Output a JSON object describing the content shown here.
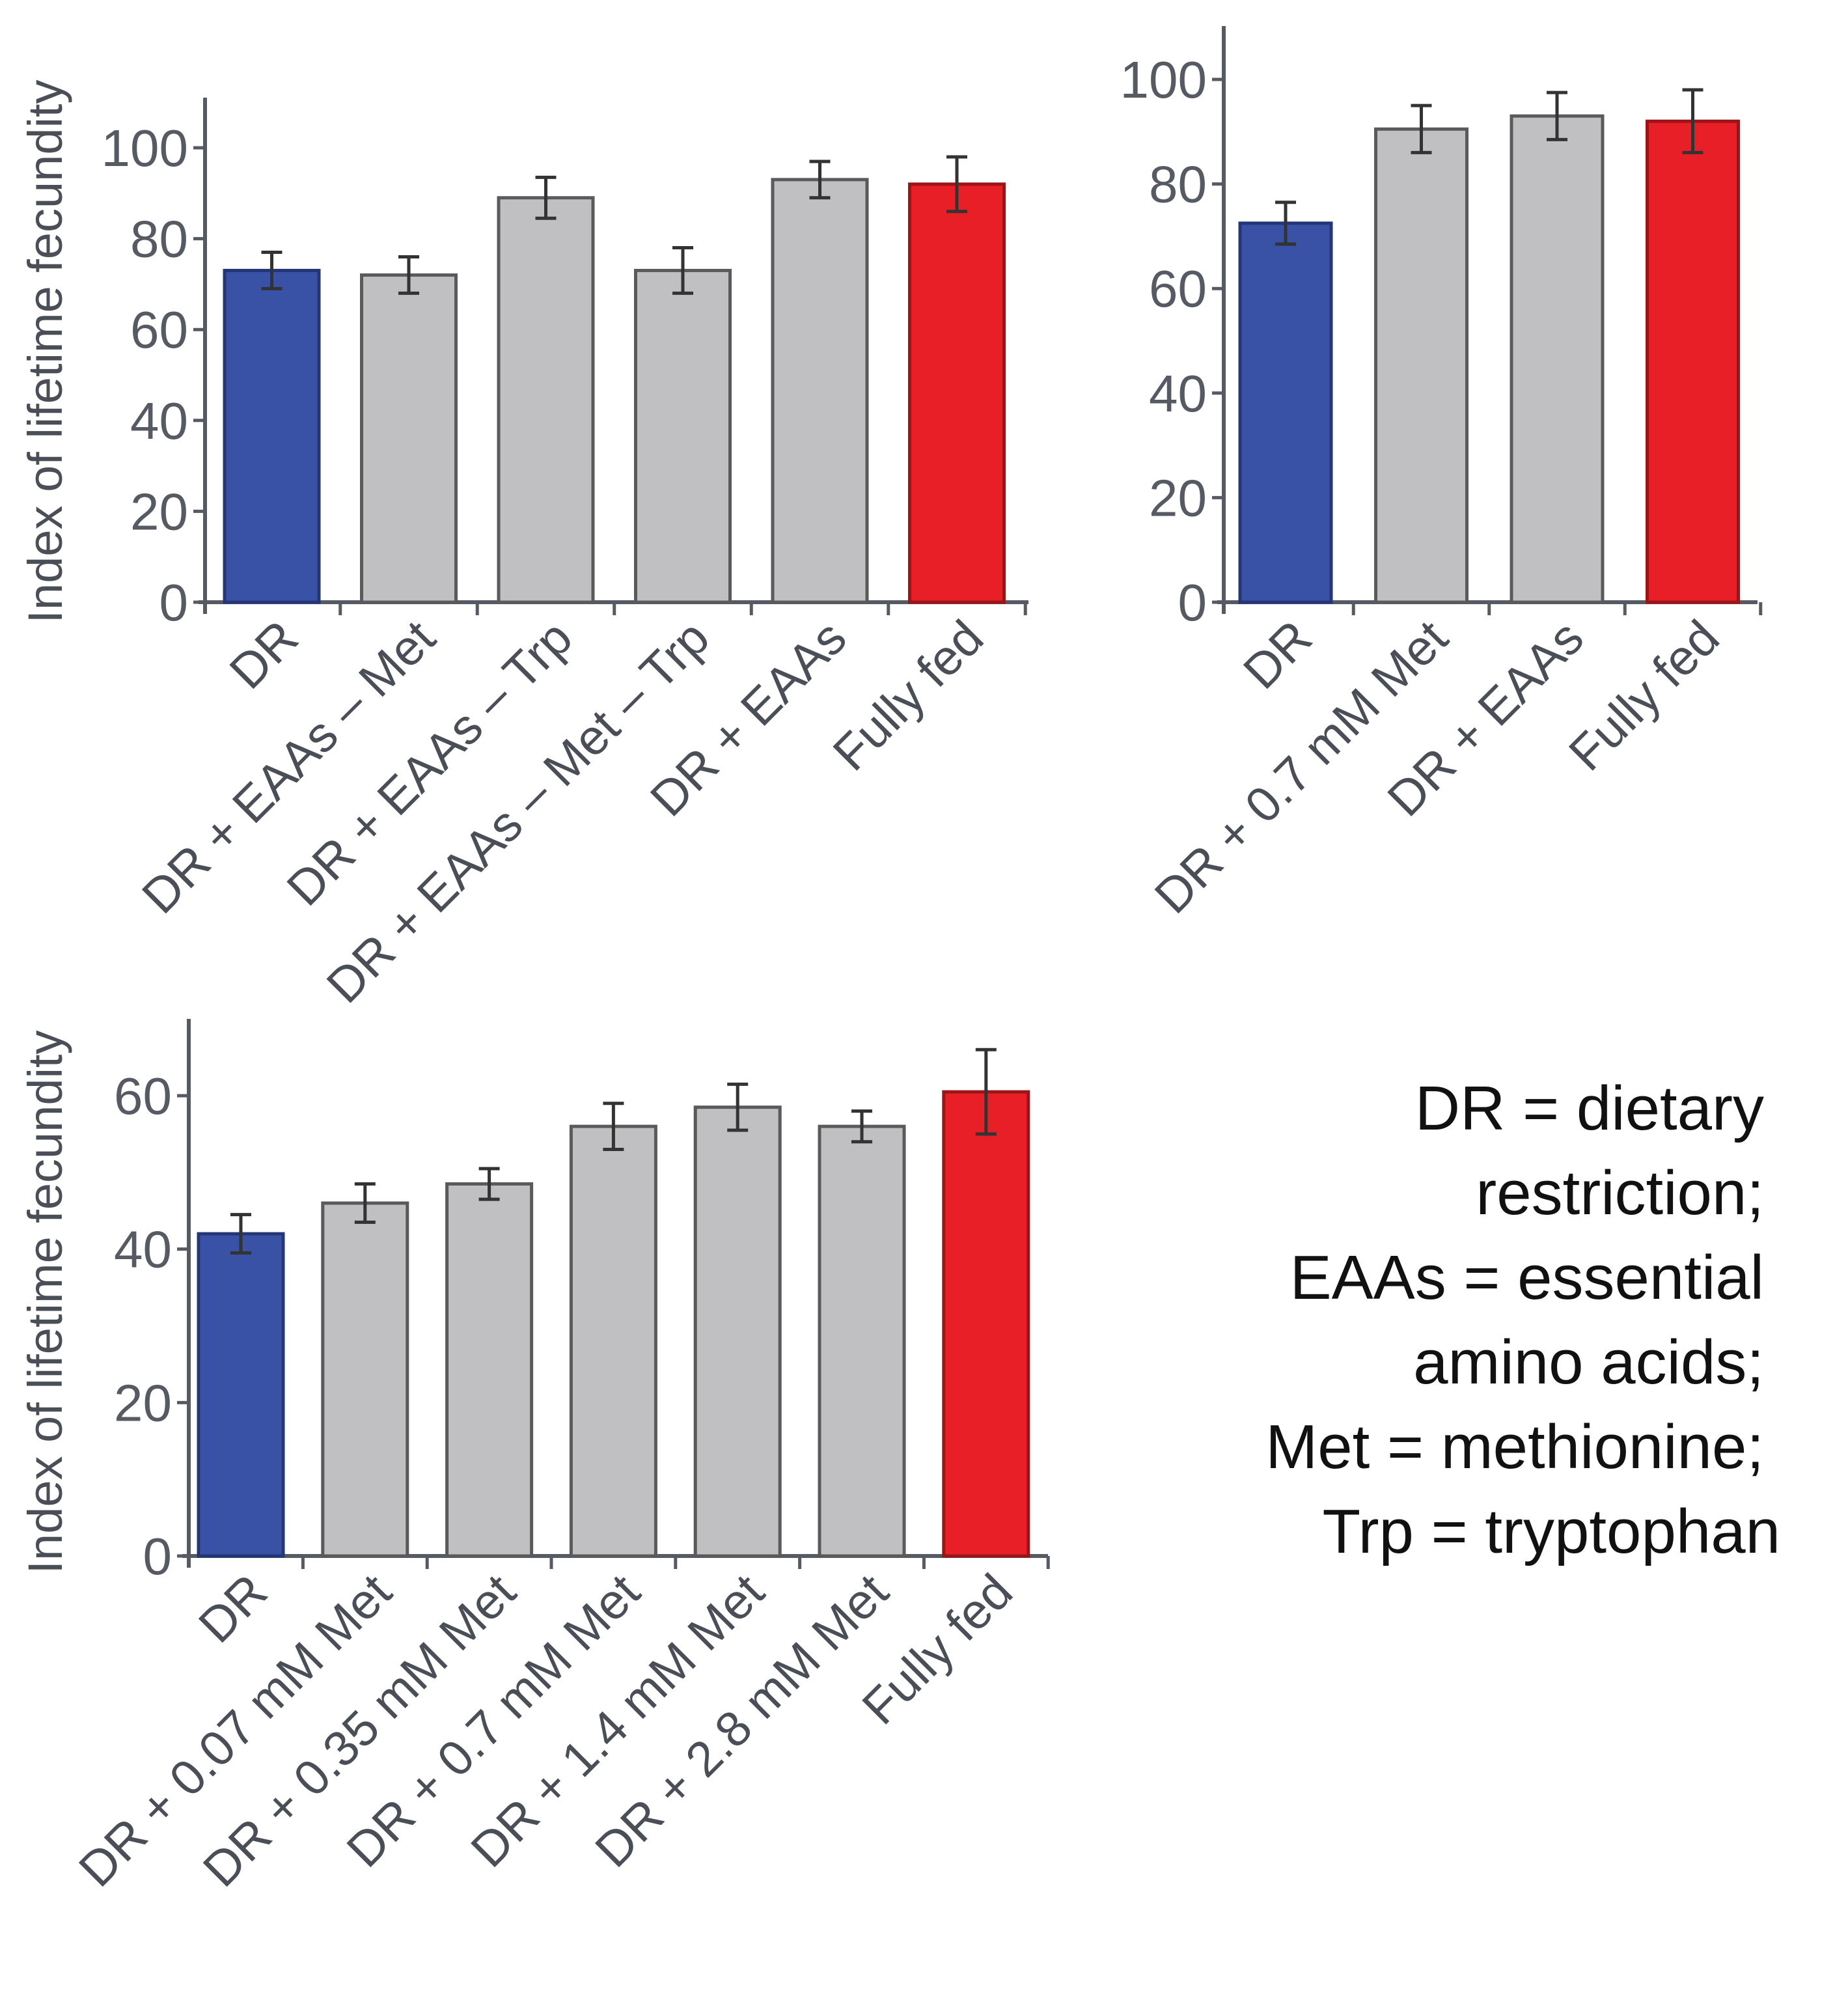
{
  "chart_data": [
    {
      "type": "bar",
      "title": "",
      "xlabel": "",
      "ylabel": "Index of lifetime fecundity",
      "ylim": [
        0,
        110
      ],
      "yticks": [
        0,
        20,
        40,
        60,
        80,
        100
      ],
      "grid": false,
      "categories": [
        "DR",
        "DR + EAAs – Met",
        "DR + EAAs – Trp",
        "DR + EAAs – Met – Trp",
        "DR + EAAs",
        "Fully fed"
      ],
      "values": [
        73,
        72,
        89,
        73,
        93,
        92
      ],
      "errors": [
        4,
        4,
        4.5,
        5,
        4,
        6
      ],
      "colors": [
        "#3a52a5",
        "#c0bfc1",
        "#c0bfc1",
        "#c0bfc1",
        "#c0bfc1",
        "#e81f26"
      ]
    },
    {
      "type": "bar",
      "title": "",
      "xlabel": "",
      "ylabel": "",
      "ylim": [
        0,
        110
      ],
      "yticks": [
        0,
        20,
        40,
        60,
        80,
        100
      ],
      "grid": false,
      "categories": [
        "DR",
        "DR + 0.7 mM Met",
        "DR + EAAs",
        "Fully fed"
      ],
      "values": [
        72.5,
        90.5,
        93,
        92
      ],
      "errors": [
        4,
        4.5,
        4.5,
        6
      ],
      "colors": [
        "#3a52a5",
        "#c0bfc1",
        "#c0bfc1",
        "#e81f26"
      ]
    },
    {
      "type": "bar",
      "title": "",
      "xlabel": "",
      "ylabel": "Index of lifetime fecundity",
      "ylim": [
        0,
        70
      ],
      "yticks": [
        0,
        20,
        40,
        60
      ],
      "grid": false,
      "categories": [
        "DR",
        "DR + 0.07 mM Met",
        "DR + 0.35 mM Met",
        "DR + 0.7 mM Met",
        "DR + 1.4 mM Met",
        "DR + 2.8 mM Met",
        "Fully fed"
      ],
      "values": [
        42,
        46,
        48.5,
        56,
        58.5,
        56,
        60.5
      ],
      "errors": [
        2.5,
        2.5,
        2,
        3,
        3,
        2,
        5.5
      ],
      "colors": [
        "#3a52a5",
        "#c0bfc1",
        "#c0bfc1",
        "#c0bfc1",
        "#c0bfc1",
        "#c0bfc1",
        "#e81f26"
      ]
    }
  ],
  "legend": {
    "lines": [
      "DR = dietary",
      "restriction;",
      "EAAs = essential",
      "amino acids;",
      "Met = methionine;",
      "Trp = tryptophan"
    ]
  }
}
